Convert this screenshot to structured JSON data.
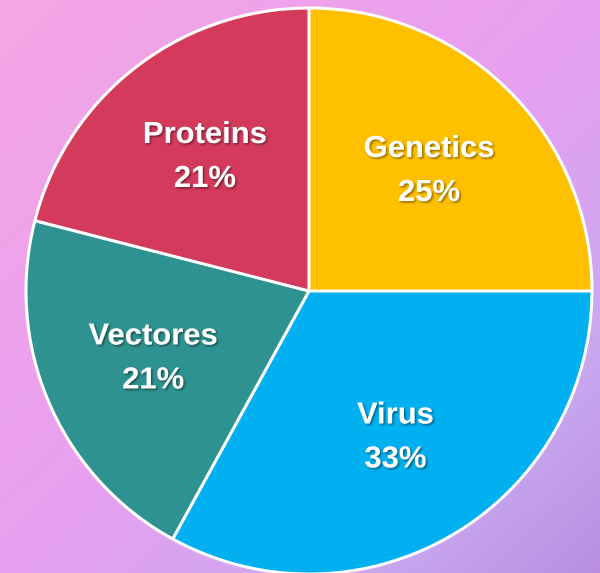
{
  "chart_data": {
    "type": "pie",
    "categories": [
      "Genetics",
      "Virus",
      "Vectores",
      "Proteins"
    ],
    "values": [
      25,
      33,
      21,
      21
    ],
    "value_labels": [
      "25%",
      "33%",
      "21%",
      "21%"
    ],
    "colors": [
      "#ffc000",
      "#00b0f0",
      "#2e9390",
      "#d43a5c"
    ]
  }
}
